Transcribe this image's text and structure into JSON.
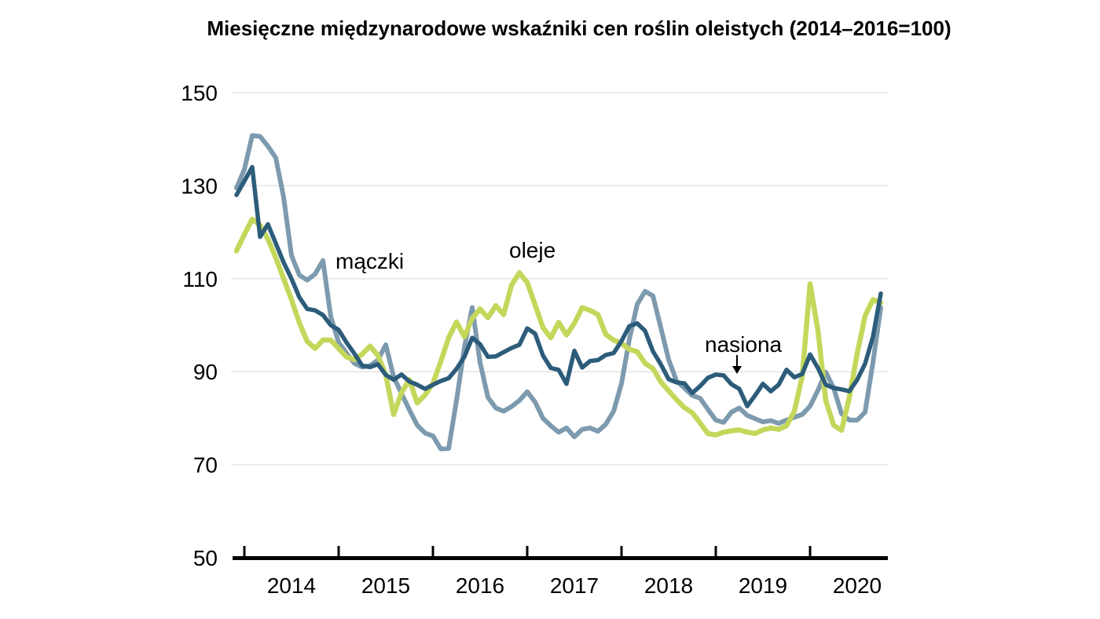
{
  "chart_data": {
    "type": "line",
    "title": "Miesięczne międzynarodowe wskaźniki cen roślin oleistych (2014–2016=100)",
    "x_start": "2013-12",
    "frequency": "monthly",
    "xlabel": "",
    "ylabel": "",
    "ylim": [
      50,
      150
    ],
    "y_ticks": [
      150,
      130,
      110,
      90,
      70,
      50
    ],
    "x_tick_labels": [
      "2014",
      "2015",
      "2016",
      "2017",
      "2018",
      "2019",
      "2020"
    ],
    "grid": "horizontal",
    "legend_position": "inline-annotations",
    "background_color": "#ffffff",
    "gridline_color": "#e5e5e5",
    "axis_color": "#000000",
    "series": [
      {
        "name": "mączki",
        "color": "#7d9aae",
        "stroke_width": 6,
        "values": [
          129.5,
          133.5,
          140.8,
          140.6,
          138.5,
          136,
          127.5,
          115,
          110.8,
          109.7,
          111,
          113.9,
          101.8,
          96.3,
          94,
          91.8,
          91,
          91.3,
          92.5,
          95.8,
          88.9,
          85.3,
          81.8,
          78.5,
          76.8,
          76.2,
          73.4,
          73.5,
          83.8,
          95.2,
          103.8,
          92,
          84.5,
          82.2,
          81.5,
          82.5,
          83.8,
          85.7,
          83.5,
          80,
          78.4,
          77,
          77.9,
          76,
          77.6,
          77.9,
          77.2,
          78.7,
          81.5,
          87.5,
          97,
          104.5,
          107.3,
          106.3,
          99.5,
          92.6,
          88,
          86.5,
          84.9,
          84.3,
          81.9,
          79.6,
          79.1,
          81.3,
          82.2,
          80.6,
          79.9,
          79.2,
          79.5,
          78.9,
          79.6,
          80.2,
          80.8,
          82.6,
          86,
          89.9,
          86.5,
          81,
          79.6,
          79.6,
          81.3,
          92,
          103.8
        ]
      },
      {
        "name": "oleje",
        "color": "#c4d75b",
        "stroke_width": 6.5,
        "values": [
          116,
          119.5,
          122.8,
          121.5,
          118.5,
          114.5,
          110,
          105.5,
          100.5,
          96.5,
          95,
          96.8,
          96.8,
          95,
          93.2,
          92.6,
          93.8,
          95.5,
          93.5,
          89.3,
          80.8,
          85.5,
          88.3,
          83.3,
          85,
          87.5,
          92.2,
          97.3,
          100.7,
          97.5,
          101.5,
          103.5,
          101.6,
          104.2,
          102.3,
          108.6,
          111.3,
          109.2,
          104.4,
          99.5,
          97.3,
          100.6,
          97.9,
          100.4,
          103.8,
          103.2,
          102.3,
          98,
          96.8,
          96.1,
          94.8,
          94.3,
          91.8,
          90.7,
          87.8,
          85.9,
          84,
          82.3,
          81.2,
          79,
          76.7,
          76.4,
          77,
          77.3,
          77.5,
          77,
          76.7,
          77.5,
          77.9,
          77.6,
          78.4,
          81.5,
          89,
          108.9,
          98.9,
          83.8,
          78.5,
          77.4,
          84.5,
          93.9,
          102,
          105.5,
          104.8
        ]
      },
      {
        "name": "nasiona",
        "color": "#2c5c7a",
        "stroke_width": 5.5,
        "values": [
          128,
          131,
          134,
          119,
          121.7,
          117.6,
          113.5,
          110,
          106,
          103.5,
          103.2,
          102.2,
          100,
          99,
          96.3,
          93.9,
          91.3,
          91,
          91.6,
          89.3,
          88.3,
          89.4,
          87.9,
          87.2,
          86.3,
          87.2,
          88,
          88.6,
          90.6,
          93.2,
          97.3,
          95.9,
          93.2,
          93.3,
          94.2,
          95.1,
          95.8,
          99.3,
          98.2,
          93.5,
          90.8,
          90.4,
          87.4,
          94.5,
          90.9,
          92.3,
          92.5,
          93.6,
          94,
          96.6,
          99.8,
          100.4,
          98.8,
          94.4,
          91.6,
          88.4,
          87.7,
          87.5,
          85.4,
          86.9,
          88.7,
          89.4,
          89.2,
          87.3,
          86.3,
          82.6,
          84.9,
          87.4,
          85.8,
          87.2,
          90.4,
          88.8,
          89.5,
          93.7,
          90.8,
          87.2,
          86.5,
          86.2,
          85.8,
          88.3,
          91.7,
          97.5,
          106.8
        ]
      }
    ],
    "annotations": [
      {
        "text": "mączki",
        "x": 427,
        "y": 342,
        "arrow": null
      },
      {
        "text": "oleje",
        "x": 648,
        "y": 328,
        "arrow": null
      },
      {
        "text": "nasiona",
        "x": 897,
        "y": 448,
        "arrow": {
          "x": 938,
          "y1": 452,
          "y2": 466,
          "tip_y": 476
        }
      }
    ]
  }
}
